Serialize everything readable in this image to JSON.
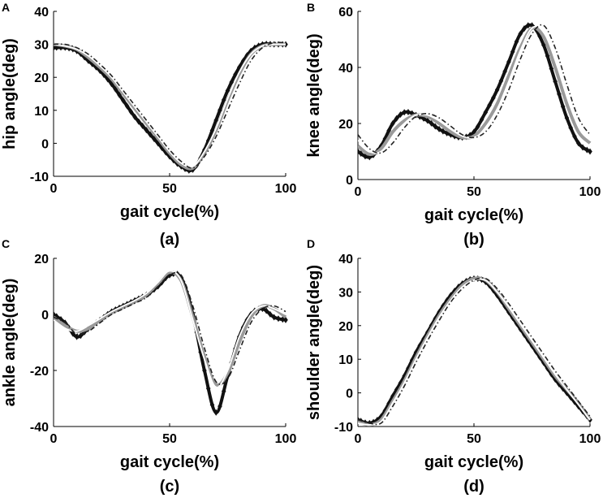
{
  "figure": {
    "styles": {
      "series1": {
        "color": "#111111",
        "marker": "diamond",
        "label": "diamond markers"
      },
      "series2": {
        "color": "#9a9a9a",
        "marker": "none",
        "label": "gray solid"
      },
      "series3": {
        "color": "#ffffff",
        "marker": "none",
        "label": "white solid"
      },
      "series4": {
        "color": "#222222",
        "marker": "none",
        "label": "black dash-dot"
      }
    }
  },
  "chart_data": [
    {
      "id": "A",
      "panel_letter": "A",
      "caption": "(a)",
      "type": "line",
      "xlabel": "gait cycle(%)",
      "ylabel": "hip angle(deg)",
      "xlim": [
        0,
        100
      ],
      "ylim": [
        -10,
        40
      ],
      "xticks": [
        0,
        50,
        100
      ],
      "yticks": [
        -10,
        0,
        10,
        20,
        30,
        40
      ],
      "x": [
        0,
        5,
        10,
        15,
        20,
        25,
        30,
        35,
        40,
        45,
        50,
        55,
        60,
        65,
        70,
        75,
        80,
        85,
        90,
        95,
        100
      ],
      "series": [
        {
          "name": "series1",
          "values": [
            29,
            29,
            28,
            25,
            22,
            18,
            13,
            8,
            4,
            0,
            -4,
            -7,
            -8,
            -2,
            7,
            16,
            23,
            28,
            30,
            30,
            30
          ]
        },
        {
          "name": "series2",
          "values": [
            30,
            29.5,
            28.5,
            26,
            23,
            19.5,
            15,
            10.5,
            6,
            1.5,
            -3,
            -6.5,
            -7.5,
            -3,
            4,
            13,
            21,
            27,
            29.5,
            30,
            30
          ]
        },
        {
          "name": "series3",
          "values": [
            30,
            29.5,
            28.5,
            26.5,
            23.5,
            20,
            15.5,
            11,
            6.5,
            2,
            -2.5,
            -6,
            -7,
            -2.5,
            4.5,
            13.5,
            21.5,
            27,
            29.5,
            30,
            30
          ]
        },
        {
          "name": "series4",
          "values": [
            30,
            30,
            29,
            27,
            24,
            20.5,
            16,
            11.5,
            7,
            2.5,
            -2,
            -5.5,
            -7.5,
            -4,
            2,
            10,
            18,
            25,
            29,
            30.5,
            30.5
          ]
        }
      ]
    },
    {
      "id": "B",
      "panel_letter": "B",
      "caption": "(b)",
      "type": "line",
      "xlabel": "gait cycle(%)",
      "ylabel": "knee angle(deg)",
      "xlim": [
        0,
        100
      ],
      "ylim": [
        0,
        60
      ],
      "xticks": [
        0,
        50,
        100
      ],
      "yticks": [
        0,
        20,
        40,
        60
      ],
      "x": [
        0,
        5,
        10,
        15,
        20,
        25,
        30,
        35,
        40,
        45,
        50,
        55,
        60,
        65,
        70,
        75,
        80,
        85,
        90,
        95,
        100
      ],
      "series": [
        {
          "name": "series1",
          "values": [
            10,
            8,
            12,
            20,
            24,
            23,
            21,
            18,
            16,
            15,
            17,
            24,
            32,
            42,
            52,
            55,
            48,
            35,
            22,
            13,
            10
          ]
        },
        {
          "name": "series2",
          "values": [
            12,
            9,
            11,
            17,
            21,
            23,
            22.5,
            20,
            17,
            15,
            15.5,
            20,
            27,
            37,
            47,
            54,
            51,
            40,
            27,
            17,
            13
          ]
        },
        {
          "name": "series3",
          "values": [
            14,
            10,
            10,
            15,
            20,
            23,
            23,
            21,
            18,
            15.5,
            15,
            18,
            25,
            35,
            46,
            54,
            53,
            43,
            30,
            19,
            14
          ]
        },
        {
          "name": "series4",
          "values": [
            16,
            11,
            9.5,
            13,
            18.5,
            22.5,
            23.5,
            22,
            19,
            16,
            15,
            17,
            23,
            32,
            43,
            52,
            55,
            47,
            34,
            22,
            16
          ]
        }
      ]
    },
    {
      "id": "C",
      "panel_letter": "C",
      "caption": "(c)",
      "type": "line",
      "xlabel": "gait cycle(%)",
      "ylabel": "ankle angle(deg)",
      "xlim": [
        0,
        100
      ],
      "ylim": [
        -40,
        20
      ],
      "xticks": [
        0,
        50,
        100
      ],
      "yticks": [
        -40,
        -20,
        0,
        20
      ],
      "x": [
        0,
        5,
        10,
        15,
        20,
        25,
        30,
        35,
        40,
        45,
        50,
        55,
        60,
        65,
        70,
        75,
        80,
        85,
        90,
        95,
        100
      ],
      "series": [
        {
          "name": "series1",
          "values": [
            0,
            -3,
            -8,
            -5,
            -2,
            1,
            3,
            5,
            7,
            10,
            14,
            13,
            0,
            -20,
            -35,
            -22,
            -8,
            0,
            2,
            -1,
            -2
          ]
        },
        {
          "name": "series2",
          "values": [
            -1,
            -4,
            -6,
            -5,
            -2,
            0.5,
            2.5,
            4.5,
            7,
            11,
            15,
            12,
            -1,
            -15,
            -25,
            -21,
            -10,
            -1,
            3,
            2,
            -1
          ]
        },
        {
          "name": "series3",
          "values": [
            -2,
            -5,
            -6,
            -4,
            -1.5,
            1,
            3,
            5,
            7.5,
            11.5,
            15.5,
            12,
            -2,
            -16,
            -26,
            -20,
            -8,
            0,
            3,
            2,
            0
          ]
        },
        {
          "name": "series4",
          "values": [
            -1,
            -3,
            -7,
            -6,
            -3,
            0,
            2,
            4,
            6,
            10,
            14,
            14,
            3,
            -12,
            -24,
            -23,
            -13,
            -3,
            2,
            3,
            1
          ]
        }
      ]
    },
    {
      "id": "D",
      "panel_letter": "D",
      "caption": "(d)",
      "type": "line",
      "xlabel": "gait cycle(%)",
      "ylabel": "shoulder angle(deg)",
      "xlim": [
        0,
        100
      ],
      "ylim": [
        -10,
        40
      ],
      "xticks": [
        0,
        50,
        100
      ],
      "yticks": [
        -10,
        0,
        10,
        20,
        30,
        40
      ],
      "x": [
        0,
        5,
        10,
        15,
        20,
        25,
        30,
        35,
        40,
        45,
        50,
        55,
        60,
        65,
        70,
        75,
        80,
        85,
        90,
        95,
        100
      ],
      "series": [
        {
          "name": "series1",
          "values": [
            -8,
            -9,
            -7,
            -1,
            5,
            12,
            18,
            24,
            29,
            32.5,
            34,
            33,
            29,
            24,
            19,
            14,
            9,
            4,
            0,
            -4,
            -8
          ]
        },
        {
          "name": "series2",
          "values": [
            -8.5,
            -9.5,
            -8,
            -2.5,
            3.5,
            10.5,
            17,
            23,
            28,
            32,
            34,
            33.5,
            30,
            25,
            20,
            15,
            10,
            5,
            1,
            -3,
            -8
          ]
        },
        {
          "name": "series3",
          "values": [
            -9,
            -9.5,
            -8.5,
            -3,
            3,
            10,
            16.5,
            22.5,
            27.5,
            31.5,
            33.5,
            33.5,
            30,
            25.5,
            20.5,
            15.5,
            10.5,
            5.5,
            1,
            -3.5,
            -8
          ]
        },
        {
          "name": "series4",
          "values": [
            -8,
            -9,
            -9,
            -4,
            2,
            9,
            15.5,
            21.5,
            27,
            31,
            33.5,
            34,
            31,
            26.5,
            21.5,
            16.5,
            11.5,
            6.5,
            2,
            -2.5,
            -7
          ]
        }
      ]
    }
  ]
}
